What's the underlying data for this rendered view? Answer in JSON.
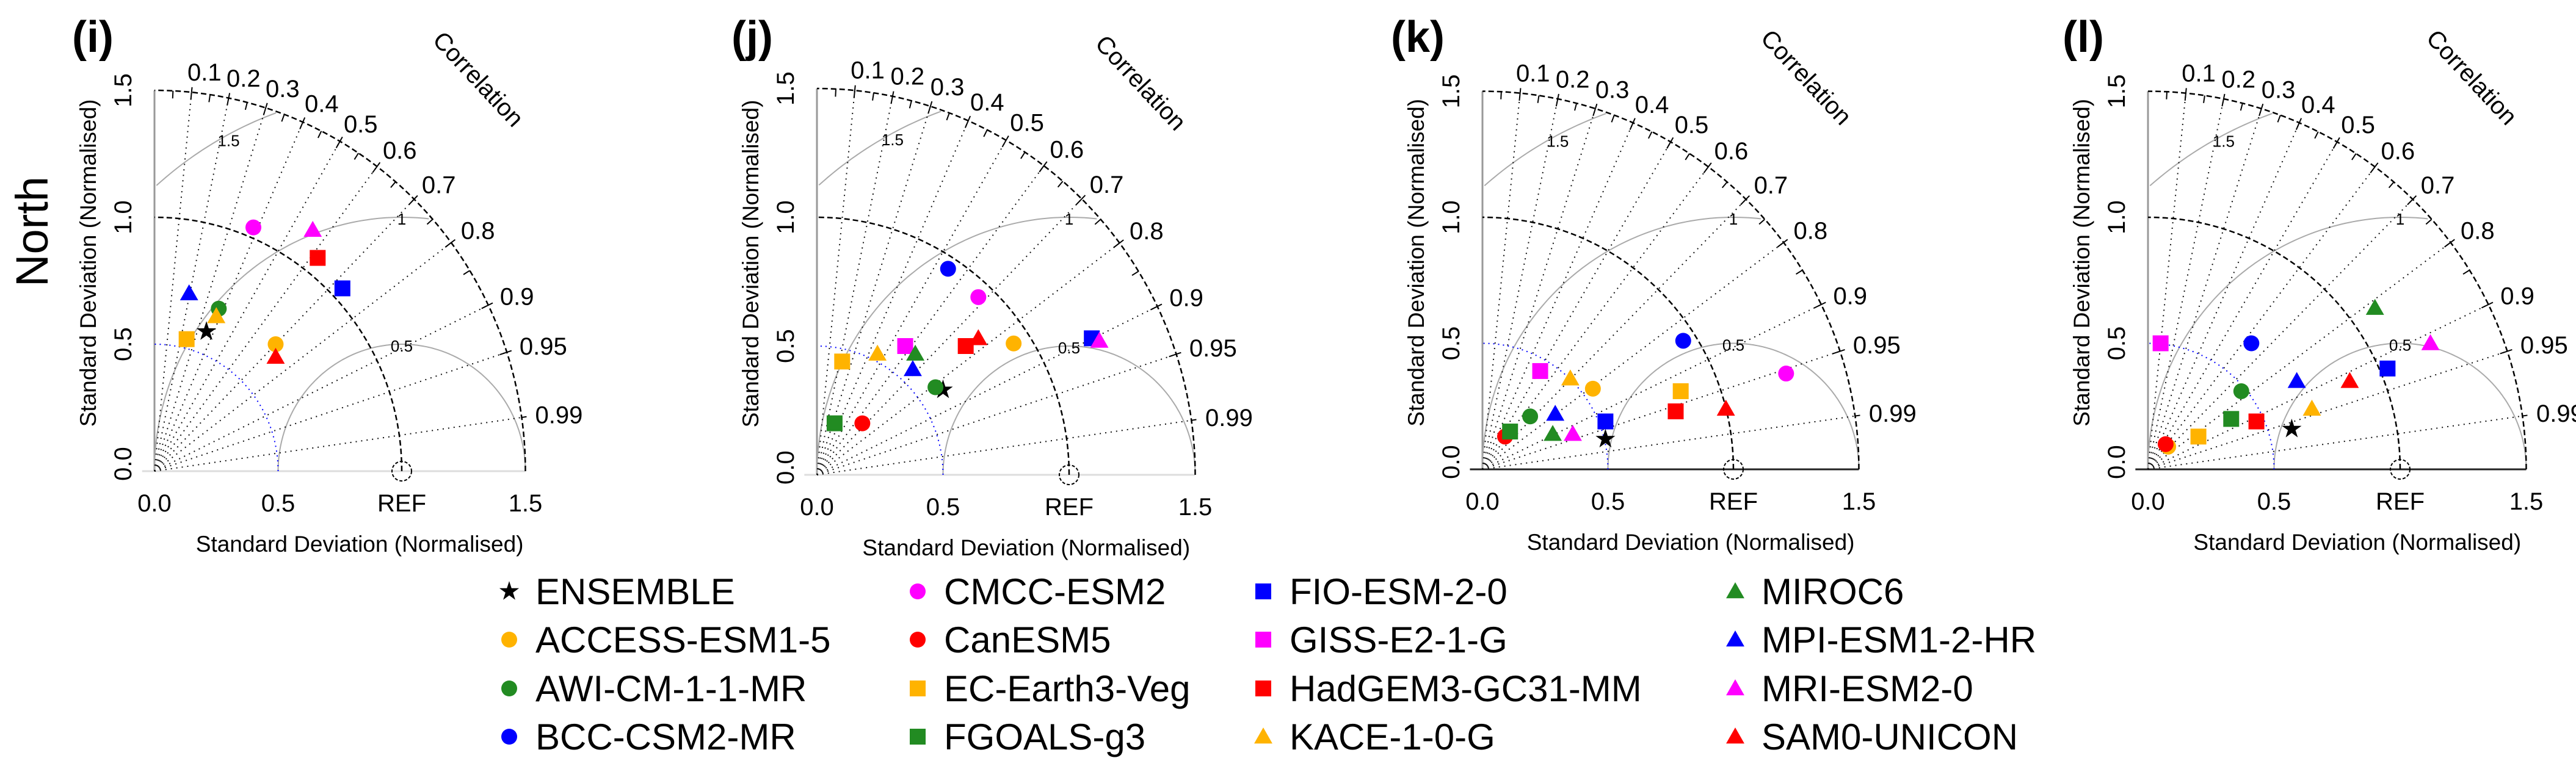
{
  "row_title": "North",
  "models": [
    {
      "name": "ENSEMBLE",
      "color": "#000000",
      "shape": "star"
    },
    {
      "name": "ACCESS-ESM1-5",
      "color": "#FFB300",
      "shape": "circle"
    },
    {
      "name": "AWI-CM-1-1-MR",
      "color": "#228B22",
      "shape": "circle"
    },
    {
      "name": "BCC-CSM2-MR",
      "color": "#0000FF",
      "shape": "circle"
    },
    {
      "name": "CMCC-ESM2",
      "color": "#FF00FF",
      "shape": "circle"
    },
    {
      "name": "CanESM5",
      "color": "#FF0000",
      "shape": "circle"
    },
    {
      "name": "EC-Earth3-Veg",
      "color": "#FFB300",
      "shape": "square"
    },
    {
      "name": "FGOALS-g3",
      "color": "#228B22",
      "shape": "square"
    },
    {
      "name": "FIO-ESM-2-0",
      "color": "#0000FF",
      "shape": "square"
    },
    {
      "name": "GISS-E2-1-G",
      "color": "#FF00FF",
      "shape": "square"
    },
    {
      "name": "HadGEM3-GC31-MM",
      "color": "#FF0000",
      "shape": "square"
    },
    {
      "name": "KACE-1-0-G",
      "color": "#FFB300",
      "shape": "triangle"
    },
    {
      "name": "MIROC6",
      "color": "#228B22",
      "shape": "triangle"
    },
    {
      "name": "MPI-ESM1-2-HR",
      "color": "#0000FF",
      "shape": "triangle"
    },
    {
      "name": "MRI-ESM2-0",
      "color": "#FF00FF",
      "shape": "triangle"
    },
    {
      "name": "SAM0-UNICON",
      "color": "#FF0000",
      "shape": "triangle"
    }
  ],
  "axis": {
    "xlabel": "Standard Deviation (Normalised)",
    "ylabel": "Standard Deviation (Normalised)",
    "corr_title": "Correlation",
    "x_ticks": [
      "0.0",
      "0.5",
      "1.5"
    ],
    "ref_label": "REF",
    "y_ticks": [
      "0.0",
      "0.5",
      "1.0",
      "1.5"
    ],
    "corr_ticks": [
      "0.1",
      "0.2",
      "0.3",
      "0.4",
      "0.5",
      "0.6",
      "0.7",
      "0.8",
      "0.9",
      "0.95",
      "0.99"
    ],
    "rmsd_labels": [
      "0.5",
      "1",
      "1.5"
    ]
  },
  "chart_data": [
    {
      "type": "scatter",
      "subtype": "taylor",
      "title": "(i)",
      "xlim": [
        0,
        1.5
      ],
      "ylim": [
        0,
        1.5
      ],
      "points": [
        [
          0.21,
          0.55
        ],
        [
          0.49,
          0.5
        ],
        [
          0.26,
          0.64
        ],
        null,
        [
          0.4,
          0.96
        ],
        null,
        [
          0.13,
          0.52
        ],
        null,
        [
          0.76,
          0.72
        ],
        null,
        [
          0.66,
          0.84
        ],
        [
          0.25,
          0.61
        ],
        null,
        [
          0.14,
          0.7
        ],
        [
          0.64,
          0.95
        ],
        [
          0.49,
          0.45
        ]
      ]
    },
    {
      "type": "scatter",
      "subtype": "taylor",
      "title": "(j)",
      "xlim": [
        0,
        1.5
      ],
      "ylim": [
        0,
        1.5
      ],
      "points": [
        [
          0.5,
          0.33
        ],
        [
          0.78,
          0.51
        ],
        [
          0.47,
          0.34
        ],
        [
          0.52,
          0.8
        ],
        [
          0.64,
          0.69
        ],
        [
          0.18,
          0.2
        ],
        [
          0.1,
          0.44
        ],
        [
          0.07,
          0.2
        ],
        [
          1.09,
          0.53
        ],
        [
          0.35,
          0.5
        ],
        [
          0.59,
          0.5
        ],
        [
          0.24,
          0.47
        ],
        [
          0.39,
          0.47
        ],
        [
          0.38,
          0.41
        ],
        [
          1.12,
          0.52
        ],
        [
          0.64,
          0.53
        ]
      ]
    },
    {
      "type": "scatter",
      "subtype": "taylor",
      "title": "(k)",
      "xlim": [
        0,
        1.5
      ],
      "ylim": [
        0,
        1.5
      ],
      "points": [
        [
          0.49,
          0.12
        ],
        [
          0.44,
          0.32
        ],
        [
          0.19,
          0.21
        ],
        [
          0.8,
          0.51
        ],
        [
          1.21,
          0.38
        ],
        [
          0.09,
          0.13
        ],
        [
          0.79,
          0.31
        ],
        [
          0.11,
          0.15
        ],
        [
          0.49,
          0.19
        ],
        [
          0.23,
          0.39
        ],
        [
          0.77,
          0.23
        ],
        [
          0.35,
          0.36
        ],
        [
          0.28,
          0.14
        ],
        [
          0.29,
          0.22
        ],
        [
          0.36,
          0.14
        ],
        [
          0.97,
          0.24
        ]
      ]
    },
    {
      "type": "scatter",
      "subtype": "taylor",
      "title": "(l)",
      "xlim": [
        0,
        1.5
      ],
      "ylim": [
        0,
        1.5
      ],
      "points": [
        [
          0.57,
          0.16
        ],
        [
          0.08,
          0.09
        ],
        [
          0.37,
          0.31
        ],
        [
          0.41,
          0.5
        ],
        null,
        [
          0.07,
          0.1
        ],
        [
          0.2,
          0.13
        ],
        [
          0.33,
          0.2
        ],
        [
          0.95,
          0.4
        ],
        [
          0.05,
          0.5
        ],
        [
          0.43,
          0.19
        ],
        [
          0.65,
          0.24
        ],
        [
          0.9,
          0.64
        ],
        [
          0.59,
          0.35
        ],
        [
          1.12,
          0.5
        ],
        [
          0.8,
          0.35
        ]
      ]
    }
  ]
}
